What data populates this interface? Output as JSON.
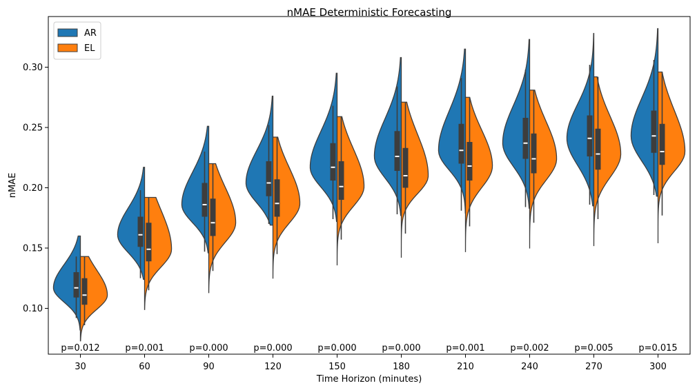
{
  "chart_data": {
    "type": "violin",
    "title": "nMAE Deterministic Forecasting",
    "xlabel": "Time Horizon (minutes)",
    "ylabel": "nMAE",
    "categories": [
      "30",
      "60",
      "90",
      "120",
      "150",
      "180",
      "210",
      "240",
      "270",
      "300"
    ],
    "ylim": [
      0.062,
      0.342
    ],
    "yticks": [
      0.1,
      0.15,
      0.2,
      0.25,
      0.3
    ],
    "ytick_labels": [
      "0.10",
      "0.15",
      "0.20",
      "0.25",
      "0.30"
    ],
    "grid": false,
    "legend_position": "top-left",
    "split": true,
    "series": [
      {
        "name": "AR",
        "color": "#1f77b4",
        "median": [
          0.117,
          0.161,
          0.186,
          0.204,
          0.217,
          0.226,
          0.231,
          0.237,
          0.241,
          0.243
        ],
        "q1": [
          0.109,
          0.151,
          0.176,
          0.193,
          0.206,
          0.214,
          0.22,
          0.224,
          0.226,
          0.229
        ],
        "q3": [
          0.13,
          0.176,
          0.204,
          0.222,
          0.237,
          0.247,
          0.253,
          0.258,
          0.26,
          0.264
        ],
        "whisker_low": [
          0.092,
          0.125,
          0.147,
          0.17,
          0.174,
          0.178,
          0.181,
          0.184,
          0.186,
          0.194
        ],
        "whisker_high": [
          0.143,
          0.198,
          0.23,
          0.252,
          0.268,
          0.284,
          0.291,
          0.298,
          0.302,
          0.306
        ],
        "min": [
          0.082,
          0.124,
          0.146,
          0.169,
          0.172,
          0.177,
          0.179,
          0.183,
          0.185,
          0.193
        ],
        "max": [
          0.16,
          0.217,
          0.251,
          0.276,
          0.295,
          0.308,
          0.315,
          0.323,
          0.328,
          0.332
        ]
      },
      {
        "name": "EL",
        "color": "#ff7f0e",
        "median": [
          0.111,
          0.149,
          0.171,
          0.187,
          0.201,
          0.21,
          0.218,
          0.224,
          0.228,
          0.23
        ],
        "q1": [
          0.103,
          0.139,
          0.16,
          0.176,
          0.19,
          0.2,
          0.206,
          0.212,
          0.215,
          0.219
        ],
        "q3": [
          0.125,
          0.171,
          0.191,
          0.207,
          0.222,
          0.233,
          0.238,
          0.245,
          0.249,
          0.253
        ],
        "whisker_low": [
          0.086,
          0.115,
          0.131,
          0.145,
          0.157,
          0.162,
          0.168,
          0.171,
          0.174,
          0.177
        ],
        "whisker_high": [
          0.143,
          0.192,
          0.22,
          0.242,
          0.259,
          0.271,
          0.275,
          0.281,
          0.292,
          0.296
        ],
        "min": [
          0.073,
          0.099,
          0.113,
          0.125,
          0.136,
          0.142,
          0.147,
          0.15,
          0.152,
          0.154
        ],
        "max": [
          0.143,
          0.192,
          0.22,
          0.242,
          0.259,
          0.271,
          0.275,
          0.281,
          0.292,
          0.296
        ]
      }
    ],
    "annotations": [
      "p=0.012",
      "p=0.001",
      "p=0.000",
      "p=0.000",
      "p=0.000",
      "p=0.000",
      "p=0.001",
      "p=0.002",
      "p=0.005",
      "p=0.015"
    ]
  }
}
